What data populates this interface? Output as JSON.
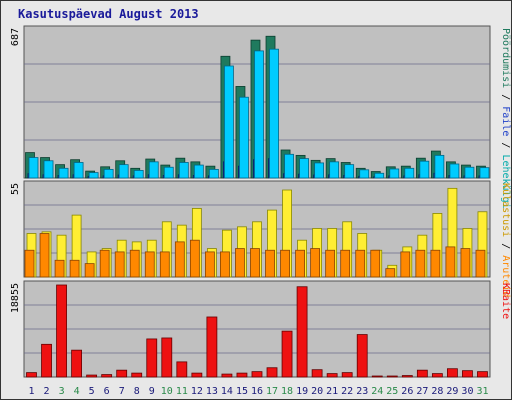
{
  "title": "Kasutuspäevad August 2013",
  "colors": {
    "visits": "#1f7a5e",
    "pages": "#1f40c8",
    "files": "#00ccff",
    "hits": "#1f7a5e",
    "unique": "#ffee33",
    "visits2": "#ff8800",
    "kbytes": "#ee1111",
    "panel": "#c0c0c0",
    "grid": "#6a6a8a",
    "weekend": "#2a8a4a",
    "weekday": "#1a1a7a"
  },
  "chart_data": [
    {
      "type": "bar",
      "ytick_max": "687",
      "ylim": [
        0,
        687
      ],
      "right_labels": [
        "Pöördumisi",
        "Faile",
        "Lehekülgi"
      ],
      "right_label_colors": [
        "#1f7a5e",
        "#1f40c8",
        "#00aaaa"
      ],
      "categories": [
        "1",
        "2",
        "3",
        "4",
        "5",
        "6",
        "7",
        "8",
        "9",
        "10",
        "11",
        "12",
        "13",
        "14",
        "15",
        "16",
        "17",
        "18",
        "19",
        "20",
        "21",
        "22",
        "23",
        "24",
        "25",
        "26",
        "27",
        "28",
        "29",
        "30",
        "31"
      ],
      "series": [
        {
          "name": "Pöördumisi",
          "values": [
            118,
            95,
            62,
            85,
            32,
            52,
            80,
            45,
            88,
            60,
            92,
            75,
            55,
            565,
            425,
            640,
            658,
            130,
            105,
            82,
            90,
            72,
            45,
            30,
            52,
            55,
            92,
            125,
            75,
            60,
            55
          ]
        },
        {
          "name": "Lehekülgi",
          "values": [
            20,
            15,
            12,
            15,
            8,
            10,
            14,
            10,
            15,
            12,
            15,
            12,
            10,
            75,
            55,
            85,
            90,
            20,
            18,
            14,
            15,
            12,
            8,
            6,
            10,
            10,
            15,
            22,
            12,
            10,
            10
          ]
        },
        {
          "name": "Faile",
          "values": [
            95,
            80,
            45,
            72,
            25,
            40,
            62,
            35,
            75,
            50,
            72,
            60,
            40,
            520,
            375,
            590,
            598,
            110,
            90,
            70,
            75,
            62,
            38,
            22,
            42,
            45,
            78,
            105,
            65,
            50,
            48
          ]
        }
      ]
    },
    {
      "type": "bar",
      "ytick_max": "55",
      "ylim": [
        0,
        55
      ],
      "right_labels": [
        "Külastusi",
        "Aruteid"
      ],
      "right_label_colors": [
        "#cc9900",
        "#ff8800"
      ],
      "categories": [
        "1",
        "2",
        "3",
        "4",
        "5",
        "6",
        "7",
        "8",
        "9",
        "10",
        "11",
        "12",
        "13",
        "14",
        "15",
        "16",
        "17",
        "18",
        "19",
        "20",
        "21",
        "22",
        "23",
        "24",
        "25",
        "26",
        "27",
        "28",
        "29",
        "30",
        "31"
      ],
      "series": [
        {
          "name": "Külastusi",
          "values": [
            26,
            27,
            25,
            37,
            15,
            17,
            22,
            21,
            22,
            33,
            31,
            41,
            17,
            28,
            30,
            33,
            40,
            52,
            22,
            29,
            29,
            33,
            26,
            16,
            7,
            18,
            25,
            38,
            53,
            29,
            39
          ]
        },
        {
          "name": "Aruteid",
          "values": [
            16,
            26,
            10,
            10,
            8,
            16,
            15,
            16,
            15,
            15,
            21,
            22,
            15,
            15,
            17,
            17,
            16,
            16,
            16,
            17,
            16,
            16,
            16,
            16,
            5,
            15,
            16,
            16,
            18,
            17,
            16
          ]
        }
      ]
    },
    {
      "type": "bar",
      "ytick_max": "18855",
      "ylim": [
        0,
        18855
      ],
      "right_labels": [
        "KBaite"
      ],
      "right_label_colors": [
        "#ee1111"
      ],
      "categories": [
        "1",
        "2",
        "3",
        "4",
        "5",
        "6",
        "7",
        "8",
        "9",
        "10",
        "11",
        "12",
        "13",
        "14",
        "15",
        "16",
        "17",
        "18",
        "19",
        "20",
        "21",
        "22",
        "23",
        "24",
        "25",
        "26",
        "27",
        "28",
        "29",
        "30",
        "31"
      ],
      "series": [
        {
          "name": "KBaite",
          "values": [
            900,
            6700,
            18855,
            5500,
            400,
            500,
            1400,
            800,
            7800,
            8000,
            3100,
            800,
            12300,
            600,
            800,
            1100,
            1900,
            9400,
            18500,
            1500,
            700,
            900,
            8700,
            150,
            150,
            300,
            1400,
            700,
            1700,
            1300,
            1100
          ]
        }
      ]
    }
  ],
  "weekend_days": [
    3,
    4,
    10,
    11,
    17,
    18,
    24,
    25,
    31
  ]
}
